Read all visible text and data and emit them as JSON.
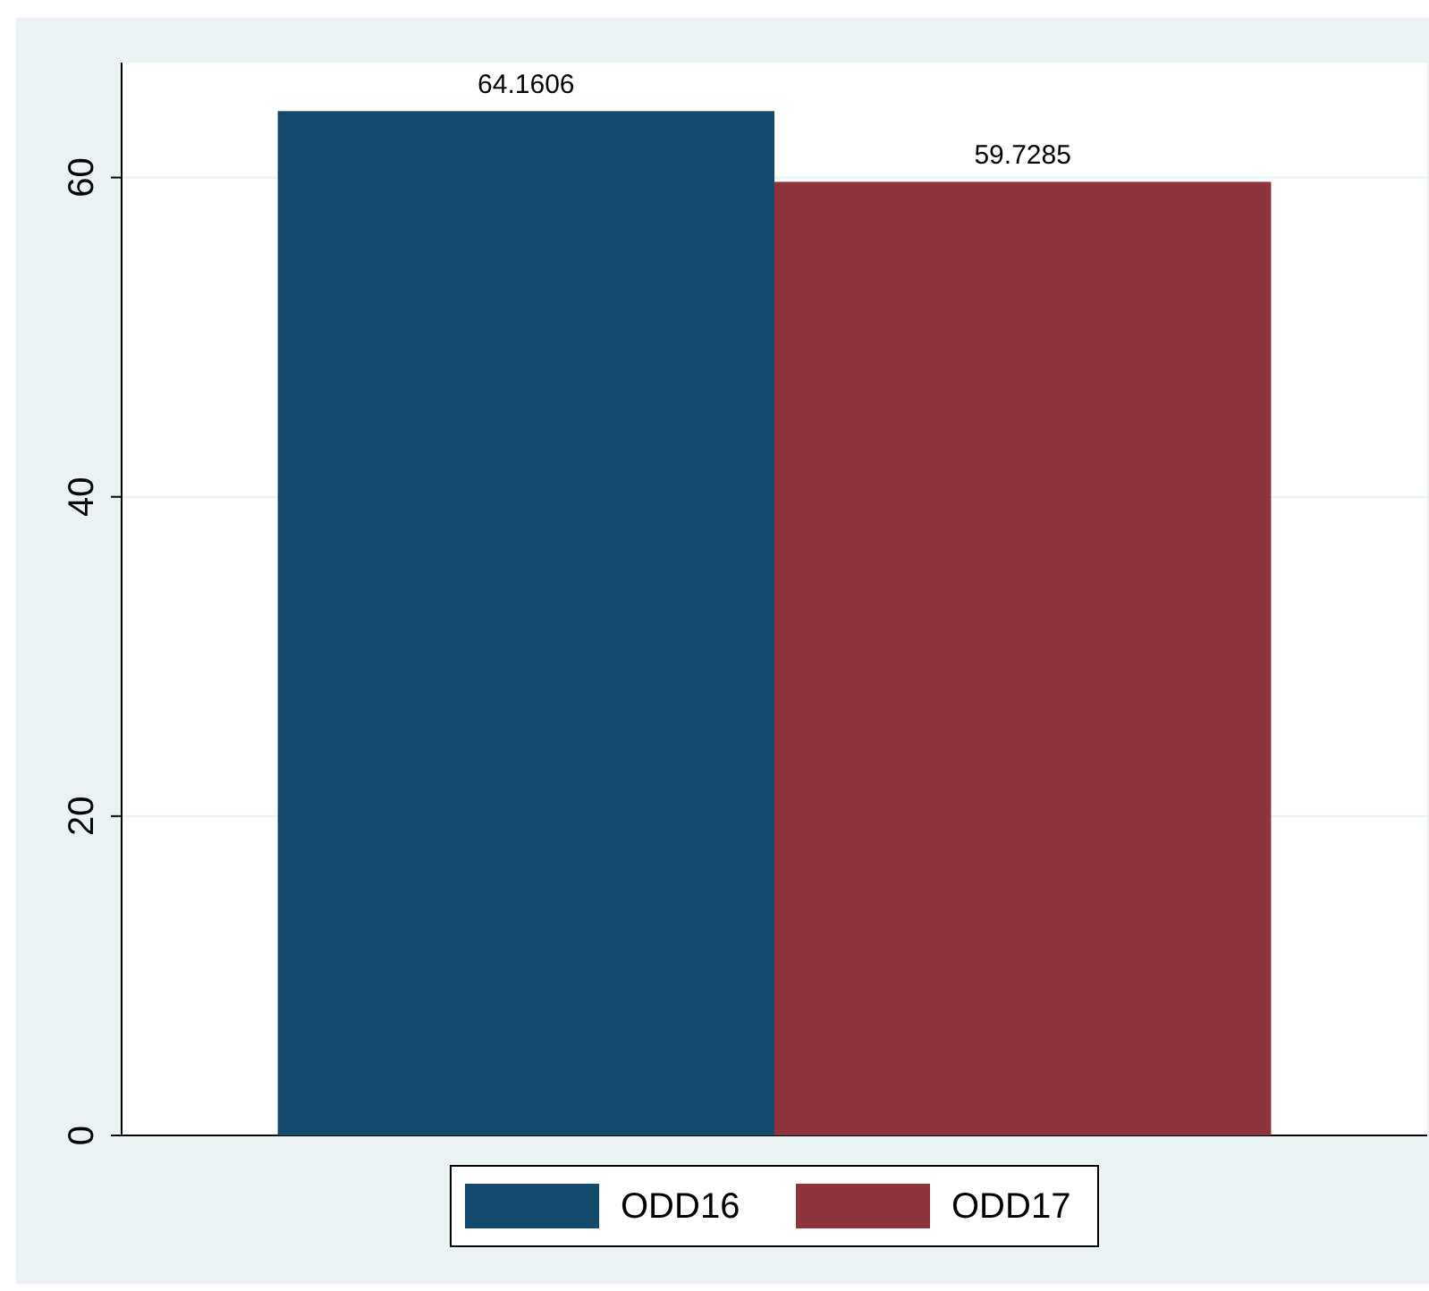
{
  "chart_data": {
    "type": "bar",
    "categories": [
      null
    ],
    "series": [
      {
        "name": "ODD16",
        "color": "#134a6e",
        "values": [
          64.1606
        ]
      },
      {
        "name": "ODD17",
        "color": "#8e343c",
        "values": [
          59.7285
        ]
      }
    ],
    "ylim": [
      0,
      67.2
    ],
    "yticks": [
      0,
      20,
      40,
      60
    ],
    "grid": "y",
    "data_labels": true,
    "legend": "bottom"
  }
}
